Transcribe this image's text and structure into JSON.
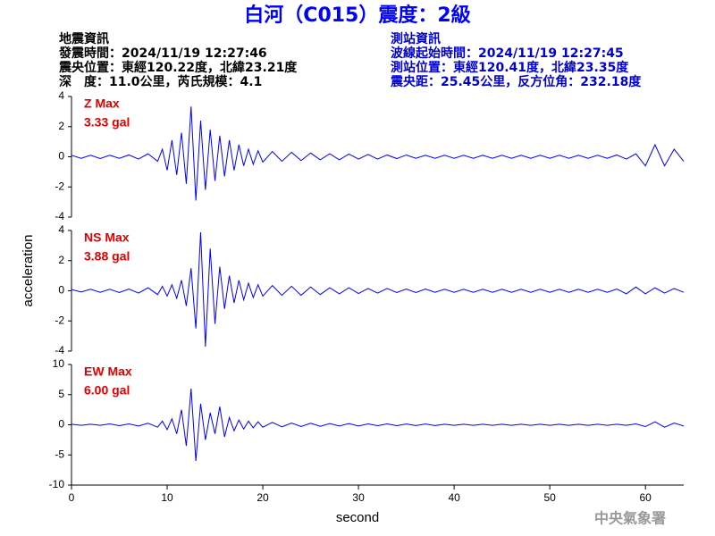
{
  "header": {
    "title": "白河（C015）震度：2級",
    "left": [
      "地震資訊",
      "發震時間：2024/11/19 12:27:46",
      "震央位置：東經120.22度，北緯23.21度",
      "深　度：11.0公里，芮氏規模：4.1"
    ],
    "right": [
      "測站資訊",
      "波線起始時間：2024/11/19 12:27:45",
      "測站位置：東經120.41度，北緯23.35度",
      "震央距：25.45公里，反方位角：232.18度"
    ]
  },
  "axis_labels": {
    "y": "acceleration",
    "x": "second"
  },
  "watermark": "中央氣象署",
  "chart_data": [
    {
      "type": "line",
      "color": "#0000ff",
      "annotations": [
        "Z Max",
        "3.33 gal"
      ],
      "annotation_color": "#e00000",
      "xlim": [
        0,
        64
      ],
      "ylim": [
        -4,
        4
      ],
      "yticks": [
        -4,
        -2,
        0,
        2,
        4
      ],
      "x": [
        0,
        1,
        2,
        3,
        4,
        5,
        6,
        7,
        8,
        9,
        9.5,
        10,
        10.5,
        11,
        11.5,
        12,
        12.5,
        13,
        13.5,
        14,
        14.5,
        15,
        15.5,
        16,
        16.5,
        17,
        17.5,
        18,
        18.5,
        19,
        19.5,
        20,
        21,
        22,
        23,
        24,
        25,
        26,
        27,
        28,
        29,
        30,
        31,
        32,
        33,
        34,
        35,
        36,
        37,
        38,
        39,
        40,
        41,
        42,
        43,
        44,
        45,
        46,
        47,
        48,
        49,
        50,
        51,
        52,
        53,
        54,
        55,
        56,
        57,
        58,
        59,
        60,
        61,
        62,
        63,
        64
      ],
      "values": [
        0.1,
        -0.1,
        0.1,
        -0.12,
        0.1,
        -0.1,
        0.12,
        -0.15,
        0.2,
        -0.3,
        0.5,
        -0.9,
        1.1,
        -1.2,
        1.6,
        -1.8,
        3.33,
        -2.9,
        2.4,
        -2.2,
        1.8,
        -1.6,
        1.4,
        -1.3,
        1.1,
        -0.9,
        0.8,
        -0.6,
        0.5,
        -0.5,
        0.4,
        -0.35,
        0.35,
        -0.3,
        0.3,
        -0.25,
        0.25,
        -0.2,
        0.2,
        -0.2,
        0.18,
        -0.15,
        0.15,
        -0.15,
        0.12,
        -0.12,
        0.12,
        -0.1,
        0.1,
        -0.1,
        0.1,
        -0.1,
        0.1,
        -0.1,
        0.1,
        -0.1,
        0.1,
        -0.1,
        0.1,
        -0.1,
        0.1,
        -0.1,
        0.1,
        -0.1,
        0.1,
        -0.1,
        0.1,
        -0.1,
        0.12,
        -0.15,
        0.2,
        -0.6,
        0.8,
        -0.6,
        0.5,
        -0.3
      ]
    },
    {
      "type": "line",
      "color": "#0000ff",
      "annotations": [
        "NS Max",
        "3.88 gal"
      ],
      "annotation_color": "#e00000",
      "xlim": [
        0,
        64
      ],
      "ylim": [
        -4,
        4
      ],
      "yticks": [
        -4,
        -2,
        0,
        2,
        4
      ],
      "x": [
        0,
        1,
        2,
        3,
        4,
        5,
        6,
        7,
        8,
        9,
        9.5,
        10,
        10.5,
        11,
        11.5,
        12,
        12.5,
        13,
        13.5,
        14,
        14.5,
        15,
        15.5,
        16,
        16.5,
        17,
        17.5,
        18,
        18.5,
        19,
        19.5,
        20,
        21,
        22,
        23,
        24,
        25,
        26,
        27,
        28,
        29,
        30,
        31,
        32,
        33,
        34,
        35,
        36,
        37,
        38,
        39,
        40,
        41,
        42,
        43,
        44,
        45,
        46,
        47,
        48,
        49,
        50,
        51,
        52,
        53,
        54,
        55,
        56,
        57,
        58,
        59,
        60,
        61,
        62,
        63,
        64
      ],
      "values": [
        0.08,
        -0.08,
        0.1,
        -0.1,
        0.1,
        -0.12,
        0.12,
        -0.15,
        0.2,
        -0.25,
        0.3,
        -0.35,
        0.4,
        -0.5,
        0.7,
        -1.0,
        1.5,
        -2.5,
        3.88,
        -3.7,
        2.8,
        -2.2,
        1.6,
        -1.2,
        1.0,
        -0.8,
        0.7,
        -0.6,
        0.5,
        -0.45,
        0.4,
        -0.35,
        0.35,
        -0.3,
        0.3,
        -0.3,
        0.25,
        -0.25,
        0.2,
        -0.2,
        0.2,
        -0.18,
        0.15,
        -0.15,
        0.15,
        -0.12,
        0.12,
        -0.12,
        0.12,
        -0.1,
        0.1,
        -0.1,
        0.1,
        -0.1,
        0.1,
        -0.1,
        0.1,
        -0.1,
        0.1,
        -0.1,
        0.1,
        -0.1,
        0.1,
        -0.1,
        0.1,
        -0.1,
        0.1,
        -0.1,
        0.12,
        -0.2,
        0.25,
        -0.2,
        0.2,
        -0.15,
        0.15,
        -0.1
      ]
    },
    {
      "type": "line",
      "color": "#0000ff",
      "annotations": [
        "EW Max",
        "6.00 gal"
      ],
      "annotation_color": "#e00000",
      "xlim": [
        0,
        64
      ],
      "ylim": [
        -10,
        10
      ],
      "yticks": [
        -10,
        -5,
        0,
        5,
        10
      ],
      "xticks": [
        0,
        10,
        20,
        30,
        40,
        50,
        60
      ],
      "x": [
        0,
        1,
        2,
        3,
        4,
        5,
        6,
        7,
        8,
        9,
        9.5,
        10,
        10.5,
        11,
        11.5,
        12,
        12.5,
        13,
        13.5,
        14,
        14.5,
        15,
        15.5,
        16,
        16.5,
        17,
        17.5,
        18,
        18.5,
        19,
        19.5,
        20,
        21,
        22,
        23,
        24,
        25,
        26,
        27,
        28,
        29,
        30,
        31,
        32,
        33,
        34,
        35,
        36,
        37,
        38,
        39,
        40,
        41,
        42,
        43,
        44,
        45,
        46,
        47,
        48,
        49,
        50,
        51,
        52,
        53,
        54,
        55,
        56,
        57,
        58,
        59,
        60,
        61,
        62,
        63,
        64
      ],
      "values": [
        0.1,
        -0.1,
        0.1,
        -0.1,
        0.15,
        -0.15,
        0.15,
        -0.2,
        0.25,
        -0.4,
        0.6,
        -0.8,
        1.0,
        -1.5,
        2.5,
        -3.5,
        6.0,
        -6.0,
        3.5,
        -2.5,
        2.0,
        -1.5,
        3.0,
        -2.0,
        1.2,
        -1.0,
        0.8,
        -0.7,
        0.6,
        -0.5,
        0.5,
        -0.4,
        0.4,
        -0.35,
        0.3,
        -0.3,
        0.25,
        -0.25,
        0.2,
        -0.2,
        0.2,
        -0.2,
        0.15,
        -0.15,
        0.15,
        -0.15,
        0.12,
        -0.12,
        0.12,
        -0.12,
        0.1,
        -0.1,
        0.1,
        -0.1,
        0.1,
        -0.1,
        0.1,
        -0.1,
        0.1,
        -0.1,
        0.1,
        -0.1,
        0.1,
        -0.1,
        0.1,
        -0.1,
        0.1,
        -0.1,
        0.1,
        -0.1,
        0.15,
        -0.3,
        0.5,
        -0.4,
        0.3,
        -0.2
      ]
    }
  ]
}
